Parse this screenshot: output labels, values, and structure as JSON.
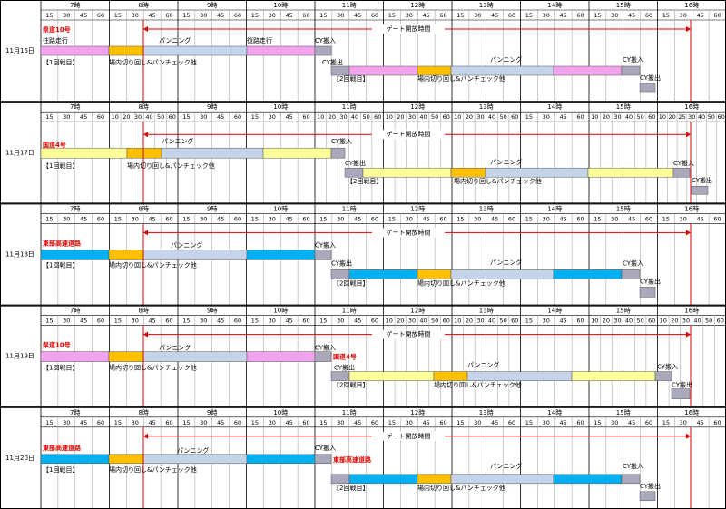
{
  "hours": [
    "7時",
    "8時",
    "9時",
    "10時",
    "11時",
    "12時",
    "13時",
    "14時",
    "15時",
    "16時"
  ],
  "days": [
    {
      "date": "11月16日",
      "gate": "ゲート開放時間",
      "subticks": [
        [
          15,
          30,
          45,
          60
        ],
        [
          15,
          30,
          45,
          60
        ],
        [
          15,
          30,
          45,
          60
        ],
        [
          15,
          30,
          45,
          60
        ],
        [
          15,
          30,
          45,
          60
        ],
        [
          15,
          30,
          45,
          60
        ],
        [
          15,
          30,
          45,
          60
        ],
        [
          15,
          30,
          45,
          60
        ],
        [
          15,
          30,
          45,
          60
        ],
        [
          15,
          30,
          45,
          60
        ]
      ],
      "labels": [
        "県道10号",
        "往路走行",
        "パンニング",
        "復路走行",
        "CY搬入",
        "【1回戦目】",
        "場内切り回し&パンチェック他",
        "CY搬出",
        "パンニング",
        "CY搬入",
        "【2回戦目】",
        "場内切り回し&パンチェック他",
        "CY搬出"
      ]
    },
    {
      "date": "11月17日",
      "gate": "ゲート開放時間",
      "subticks": [
        [
          15,
          30,
          45,
          60
        ],
        [
          10,
          20,
          30,
          40,
          50,
          60
        ],
        [
          15,
          30,
          45,
          60
        ],
        [
          15,
          30,
          45,
          60
        ],
        [
          10,
          20,
          30,
          40,
          50,
          60
        ],
        [
          10,
          20,
          30,
          40,
          50,
          60
        ],
        [
          10,
          20,
          30,
          40,
          50,
          60
        ],
        [
          15,
          30,
          45,
          60
        ],
        [
          10,
          20,
          30,
          40,
          50,
          60
        ],
        [
          10,
          20,
          25,
          30,
          40,
          50,
          60
        ]
      ],
      "labels": [
        "国道4号",
        "パンニング",
        "CY搬入",
        "【1回戦目】",
        "場内切り回し&パンチェック他",
        "CY搬出",
        "パンニング",
        "CY搬入",
        "【2回戦目】",
        "場内切り回し&パンチェック他",
        "CY搬出"
      ]
    },
    {
      "date": "11月18日",
      "gate": "ゲート開放時間",
      "subticks": [
        [
          15,
          30,
          45,
          60
        ],
        [
          15,
          30,
          45,
          60
        ],
        [
          15,
          30,
          45,
          60
        ],
        [
          15,
          30,
          45,
          60
        ],
        [
          15,
          30,
          45,
          60
        ],
        [
          15,
          30,
          45,
          60
        ],
        [
          15,
          30,
          45,
          60
        ],
        [
          15,
          30,
          45,
          60
        ],
        [
          15,
          30,
          45,
          60
        ],
        [
          15,
          30,
          45,
          60
        ]
      ],
      "labels": [
        "東部高速道路",
        "パンニング",
        "CY搬入",
        "【1回戦目】",
        "場内切り回し&パンチェック他",
        "CY搬出",
        "パンニング",
        "CY搬入",
        "【2回戦目】",
        "場内切り回し&パンチェック他",
        "CY搬出"
      ]
    },
    {
      "date": "11月19日",
      "gate": "ゲート開放時間",
      "subticks": [
        [
          15,
          30,
          45,
          60
        ],
        [
          15,
          30,
          45,
          60
        ],
        [
          15,
          30,
          45,
          60
        ],
        [
          15,
          30,
          45,
          60
        ],
        [
          15,
          30,
          45,
          60
        ],
        [
          10,
          20,
          30,
          40,
          50,
          60
        ],
        [
          10,
          20,
          30,
          40,
          50,
          60
        ],
        [
          15,
          30,
          45,
          60
        ],
        [
          10,
          20,
          30,
          40,
          50,
          60
        ],
        [
          10,
          20,
          30,
          40,
          50,
          60
        ]
      ],
      "labels": [
        "県道10号",
        "パンニング",
        "CY搬入",
        "【1回戦目】",
        "場内切り回し&パンチェック他",
        "国道4号",
        "CY搬出",
        "パンニング",
        "CY搬入",
        "【2回戦目】",
        "場内切り回し&パンチェック他",
        "CY搬出"
      ]
    },
    {
      "date": "11月20日",
      "gate": "ゲート開放時間",
      "subticks": [
        [
          15,
          30,
          45,
          60
        ],
        [
          15,
          30,
          45,
          60
        ],
        [
          15,
          30,
          45,
          60
        ],
        [
          15,
          30,
          45,
          60
        ],
        [
          15,
          30,
          45,
          60
        ],
        [
          15,
          30,
          45,
          60
        ],
        [
          15,
          30,
          45,
          60
        ],
        [
          15,
          30,
          45,
          60
        ],
        [
          15,
          30,
          45,
          60
        ],
        [
          15,
          30,
          45,
          60
        ]
      ],
      "labels": [
        "東部高速道路",
        "パンニング",
        "CY搬入",
        "【1回戦目】",
        "場内切り回し&パンチェック他",
        "東部高速道路",
        "パンニング",
        "CY搬入",
        "【2回戦目】",
        "場内切り回し&パンチェック他",
        "CY搬出"
      ]
    }
  ]
}
